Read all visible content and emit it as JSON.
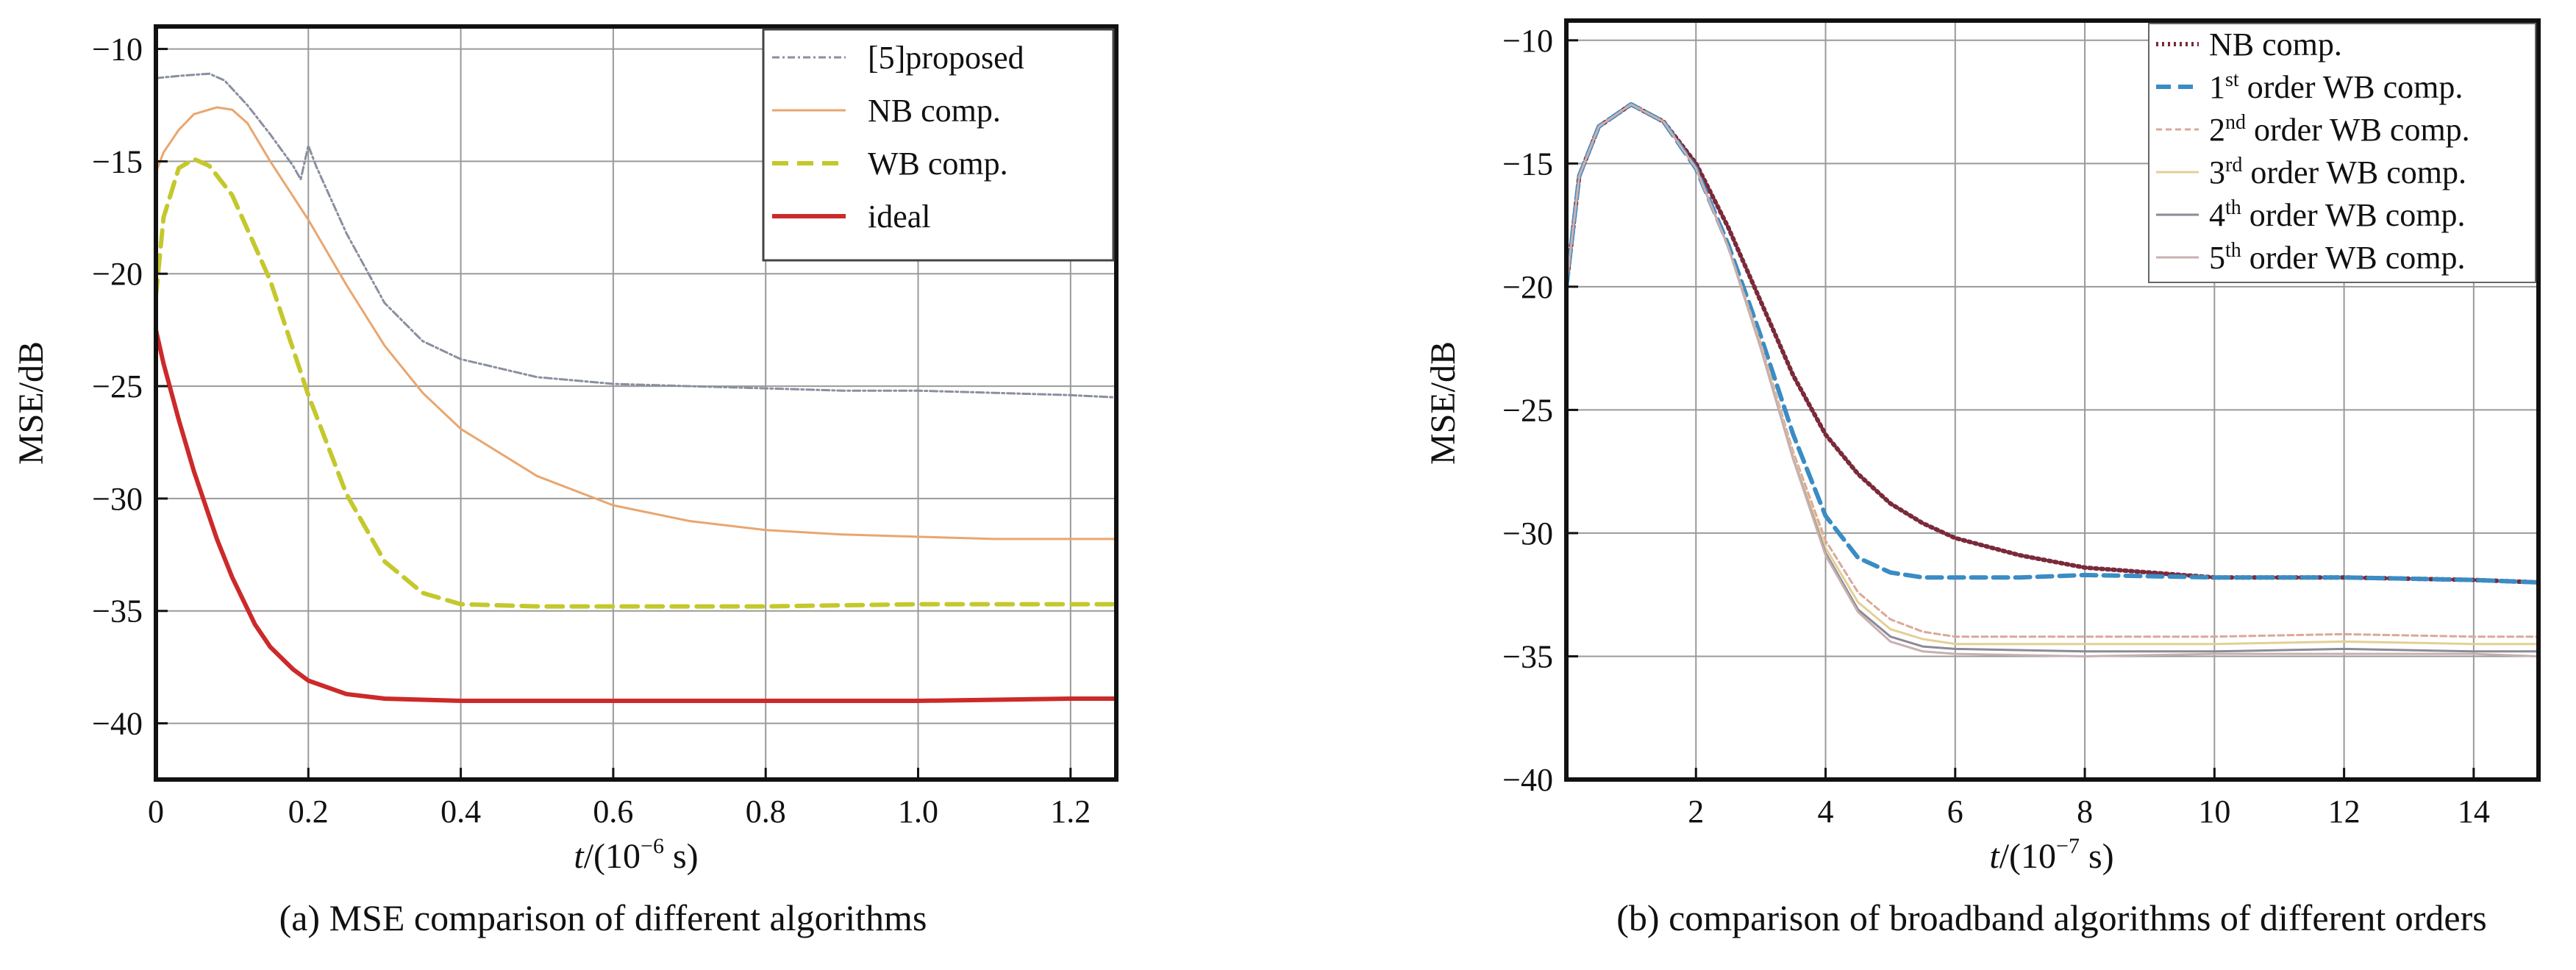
{
  "chart_data": [
    {
      "type": "line",
      "caption": "(a) MSE comparison of different algorithms",
      "xlabel_italic": "t",
      "xlabel_rest": "/(10",
      "xlabel_exp": "−6",
      "xlabel_unit": " s)",
      "ylabel": "MSE/dB",
      "xlim": [
        0,
        1.26
      ],
      "ylim": [
        -42.5,
        -9
      ],
      "x_ticks": [
        0,
        0.2,
        0.4,
        0.6,
        0.8,
        1.0,
        1.2
      ],
      "x_tick_labels": [
        "0",
        "0.2",
        "0.4",
        "0.6",
        "0.8",
        "1.0",
        "1.2"
      ],
      "y_ticks": [
        -10,
        -15,
        -20,
        -25,
        -30,
        -35,
        -40
      ],
      "y_tick_labels": [
        "−10",
        "−15",
        "−20",
        "−25",
        "−30",
        "−35",
        "−40"
      ],
      "grid": true,
      "legend_position": "top-right",
      "series": [
        {
          "name": "[5]proposed",
          "color": "#8a8fa0",
          "dash": "10,4,3,4",
          "width": 3,
          "x": [
            0,
            0.03,
            0.07,
            0.09,
            0.12,
            0.15,
            0.18,
            0.19,
            0.2,
            0.21,
            0.25,
            0.3,
            0.35,
            0.4,
            0.5,
            0.6,
            0.7,
            0.8,
            0.9,
            1.0,
            1.1,
            1.2,
            1.26
          ],
          "y": [
            -11.3,
            -11.2,
            -11.1,
            -11.4,
            -12.5,
            -13.8,
            -15.2,
            -15.8,
            -14.3,
            -15.2,
            -18.2,
            -21.3,
            -23.0,
            -23.8,
            -24.6,
            -24.9,
            -25.0,
            -25.1,
            -25.2,
            -25.2,
            -25.3,
            -25.4,
            -25.5
          ]
        },
        {
          "name": "NB comp.",
          "color": "#e9a66f",
          "dash": "",
          "width": 3,
          "x": [
            0,
            0.01,
            0.03,
            0.05,
            0.08,
            0.1,
            0.12,
            0.15,
            0.2,
            0.25,
            0.3,
            0.35,
            0.4,
            0.5,
            0.6,
            0.7,
            0.8,
            0.9,
            1.0,
            1.1,
            1.2,
            1.26
          ],
          "y": [
            -15.5,
            -14.6,
            -13.6,
            -12.9,
            -12.6,
            -12.7,
            -13.3,
            -15.0,
            -17.6,
            -20.5,
            -23.2,
            -25.3,
            -26.9,
            -29.0,
            -30.3,
            -31.0,
            -31.4,
            -31.6,
            -31.7,
            -31.8,
            -31.8,
            -31.8
          ]
        },
        {
          "name": "WB comp.",
          "color": "#c4c82c",
          "dash": "22,12",
          "width": 6,
          "x": [
            0,
            0.01,
            0.03,
            0.05,
            0.07,
            0.1,
            0.15,
            0.2,
            0.25,
            0.3,
            0.35,
            0.4,
            0.5,
            0.6,
            0.8,
            1.0,
            1.2,
            1.26
          ],
          "y": [
            -21.0,
            -17.5,
            -15.3,
            -14.9,
            -15.2,
            -16.5,
            -20.3,
            -25.4,
            -29.8,
            -32.8,
            -34.2,
            -34.7,
            -34.8,
            -34.8,
            -34.8,
            -34.7,
            -34.7,
            -34.7
          ]
        },
        {
          "name": "ideal",
          "color": "#cc2a2a",
          "dash": "",
          "width": 6,
          "x": [
            0,
            0.01,
            0.03,
            0.05,
            0.08,
            0.1,
            0.13,
            0.15,
            0.18,
            0.2,
            0.25,
            0.3,
            0.4,
            0.6,
            0.8,
            1.0,
            1.2,
            1.26
          ],
          "y": [
            -22.5,
            -24.0,
            -26.5,
            -28.8,
            -31.8,
            -33.5,
            -35.6,
            -36.6,
            -37.6,
            -38.1,
            -38.7,
            -38.9,
            -39.0,
            -39.0,
            -39.0,
            -39.0,
            -38.9,
            -38.9
          ]
        }
      ]
    },
    {
      "type": "line",
      "caption": "(b) comparison of broadband algorithms of different orders",
      "xlabel_italic": "t",
      "xlabel_rest": "/(10",
      "xlabel_exp": "−7",
      "xlabel_unit": " s)",
      "ylabel": "MSE/dB",
      "xlim": [
        0,
        15
      ],
      "ylim": [
        -40,
        -9.2
      ],
      "x_ticks": [
        2,
        4,
        6,
        8,
        10,
        12,
        14
      ],
      "x_tick_labels": [
        "2",
        "4",
        "6",
        "8",
        "10",
        "12",
        "14"
      ],
      "y_ticks": [
        -10,
        -15,
        -20,
        -25,
        -30,
        -35,
        -40
      ],
      "y_tick_labels": [
        "−10",
        "−15",
        "−20",
        "−25",
        "−30",
        "−35",
        "−40"
      ],
      "grid": true,
      "legend_position": "top-right",
      "series": [
        {
          "name": "NB comp.",
          "name_sup": "",
          "name_rest": "",
          "color": "#7a2a3a",
          "dash": "3,5",
          "width": 6,
          "x": [
            0,
            0.2,
            0.5,
            1.0,
            1.5,
            2.0,
            2.5,
            3.0,
            3.5,
            4.0,
            4.5,
            5.0,
            5.5,
            6.0,
            7.0,
            8.0,
            10.0,
            12.0,
            14.0,
            15.0
          ],
          "y": [
            -20.0,
            -15.5,
            -13.5,
            -12.6,
            -13.3,
            -15.0,
            -17.6,
            -20.6,
            -23.6,
            -26.0,
            -27.6,
            -28.8,
            -29.6,
            -30.2,
            -30.9,
            -31.4,
            -31.8,
            -31.8,
            -31.9,
            -32.0
          ]
        },
        {
          "name": "1",
          "name_sup": "st",
          "name_rest": " order WB comp.",
          "color": "#3a8cc4",
          "dash": "20,10",
          "width": 6,
          "x": [
            0,
            0.2,
            0.5,
            1.0,
            1.5,
            2.0,
            2.5,
            3.0,
            3.5,
            4.0,
            4.5,
            5.0,
            5.5,
            6.0,
            7.0,
            8.0,
            10.0,
            12.0,
            14.0,
            15.0
          ],
          "y": [
            -20.0,
            -15.5,
            -13.5,
            -12.6,
            -13.3,
            -15.2,
            -18.3,
            -22.0,
            -26.0,
            -29.3,
            -31.0,
            -31.6,
            -31.8,
            -31.8,
            -31.8,
            -31.7,
            -31.8,
            -31.8,
            -31.9,
            -32.0
          ]
        },
        {
          "name": "2",
          "name_sup": "nd",
          "name_rest": " order WB comp.",
          "color": "#d9a99a",
          "dash": "8,5",
          "width": 3,
          "x": [
            0,
            0.2,
            0.5,
            1.0,
            1.5,
            2.0,
            2.5,
            3.0,
            3.5,
            4.0,
            4.5,
            5.0,
            5.5,
            6.0,
            8.0,
            10.0,
            12.0,
            14.0,
            15.0
          ],
          "y": [
            -20.0,
            -15.5,
            -13.5,
            -12.6,
            -13.3,
            -15.2,
            -18.4,
            -22.3,
            -26.7,
            -30.3,
            -32.4,
            -33.5,
            -34.0,
            -34.2,
            -34.2,
            -34.2,
            -34.1,
            -34.2,
            -34.2
          ]
        },
        {
          "name": "3",
          "name_sup": "rd",
          "name_rest": " order WB comp.",
          "color": "#e3cf95",
          "dash": "",
          "width": 3,
          "x": [
            0,
            0.2,
            0.5,
            1.0,
            1.5,
            2.0,
            2.5,
            3.0,
            3.5,
            4.0,
            4.5,
            5.0,
            5.5,
            6.0,
            8.0,
            10.0,
            12.0,
            14.0,
            15.0
          ],
          "y": [
            -20.0,
            -15.5,
            -13.5,
            -12.6,
            -13.3,
            -15.2,
            -18.4,
            -22.4,
            -26.9,
            -30.6,
            -32.8,
            -33.9,
            -34.3,
            -34.5,
            -34.5,
            -34.5,
            -34.4,
            -34.5,
            -34.5
          ]
        },
        {
          "name": "4",
          "name_sup": "th",
          "name_rest": " order WB comp.",
          "color": "#8a8a98",
          "dash": "",
          "width": 3,
          "x": [
            0,
            0.2,
            0.5,
            1.0,
            1.5,
            2.0,
            2.5,
            3.0,
            3.5,
            4.0,
            4.5,
            5.0,
            5.5,
            6.0,
            8.0,
            10.0,
            12.0,
            14.0,
            15.0
          ],
          "y": [
            -20.0,
            -15.5,
            -13.5,
            -12.6,
            -13.3,
            -15.2,
            -18.4,
            -22.5,
            -27.0,
            -30.8,
            -33.1,
            -34.2,
            -34.6,
            -34.7,
            -34.8,
            -34.8,
            -34.7,
            -34.8,
            -34.8
          ]
        },
        {
          "name": "5",
          "name_sup": "th",
          "name_rest": " order WB comp.",
          "color": "#c8b0b0",
          "dash": "",
          "width": 3,
          "x": [
            0,
            0.2,
            0.5,
            1.0,
            1.5,
            2.0,
            2.5,
            3.0,
            3.5,
            4.0,
            4.5,
            5.0,
            5.5,
            6.0,
            8.0,
            10.0,
            12.0,
            14.0,
            15.0
          ],
          "y": [
            -20.0,
            -15.5,
            -13.5,
            -12.6,
            -13.3,
            -15.2,
            -18.4,
            -22.5,
            -27.0,
            -30.9,
            -33.2,
            -34.4,
            -34.8,
            -34.9,
            -35.0,
            -34.9,
            -34.9,
            -34.9,
            -35.0
          ]
        }
      ]
    }
  ]
}
